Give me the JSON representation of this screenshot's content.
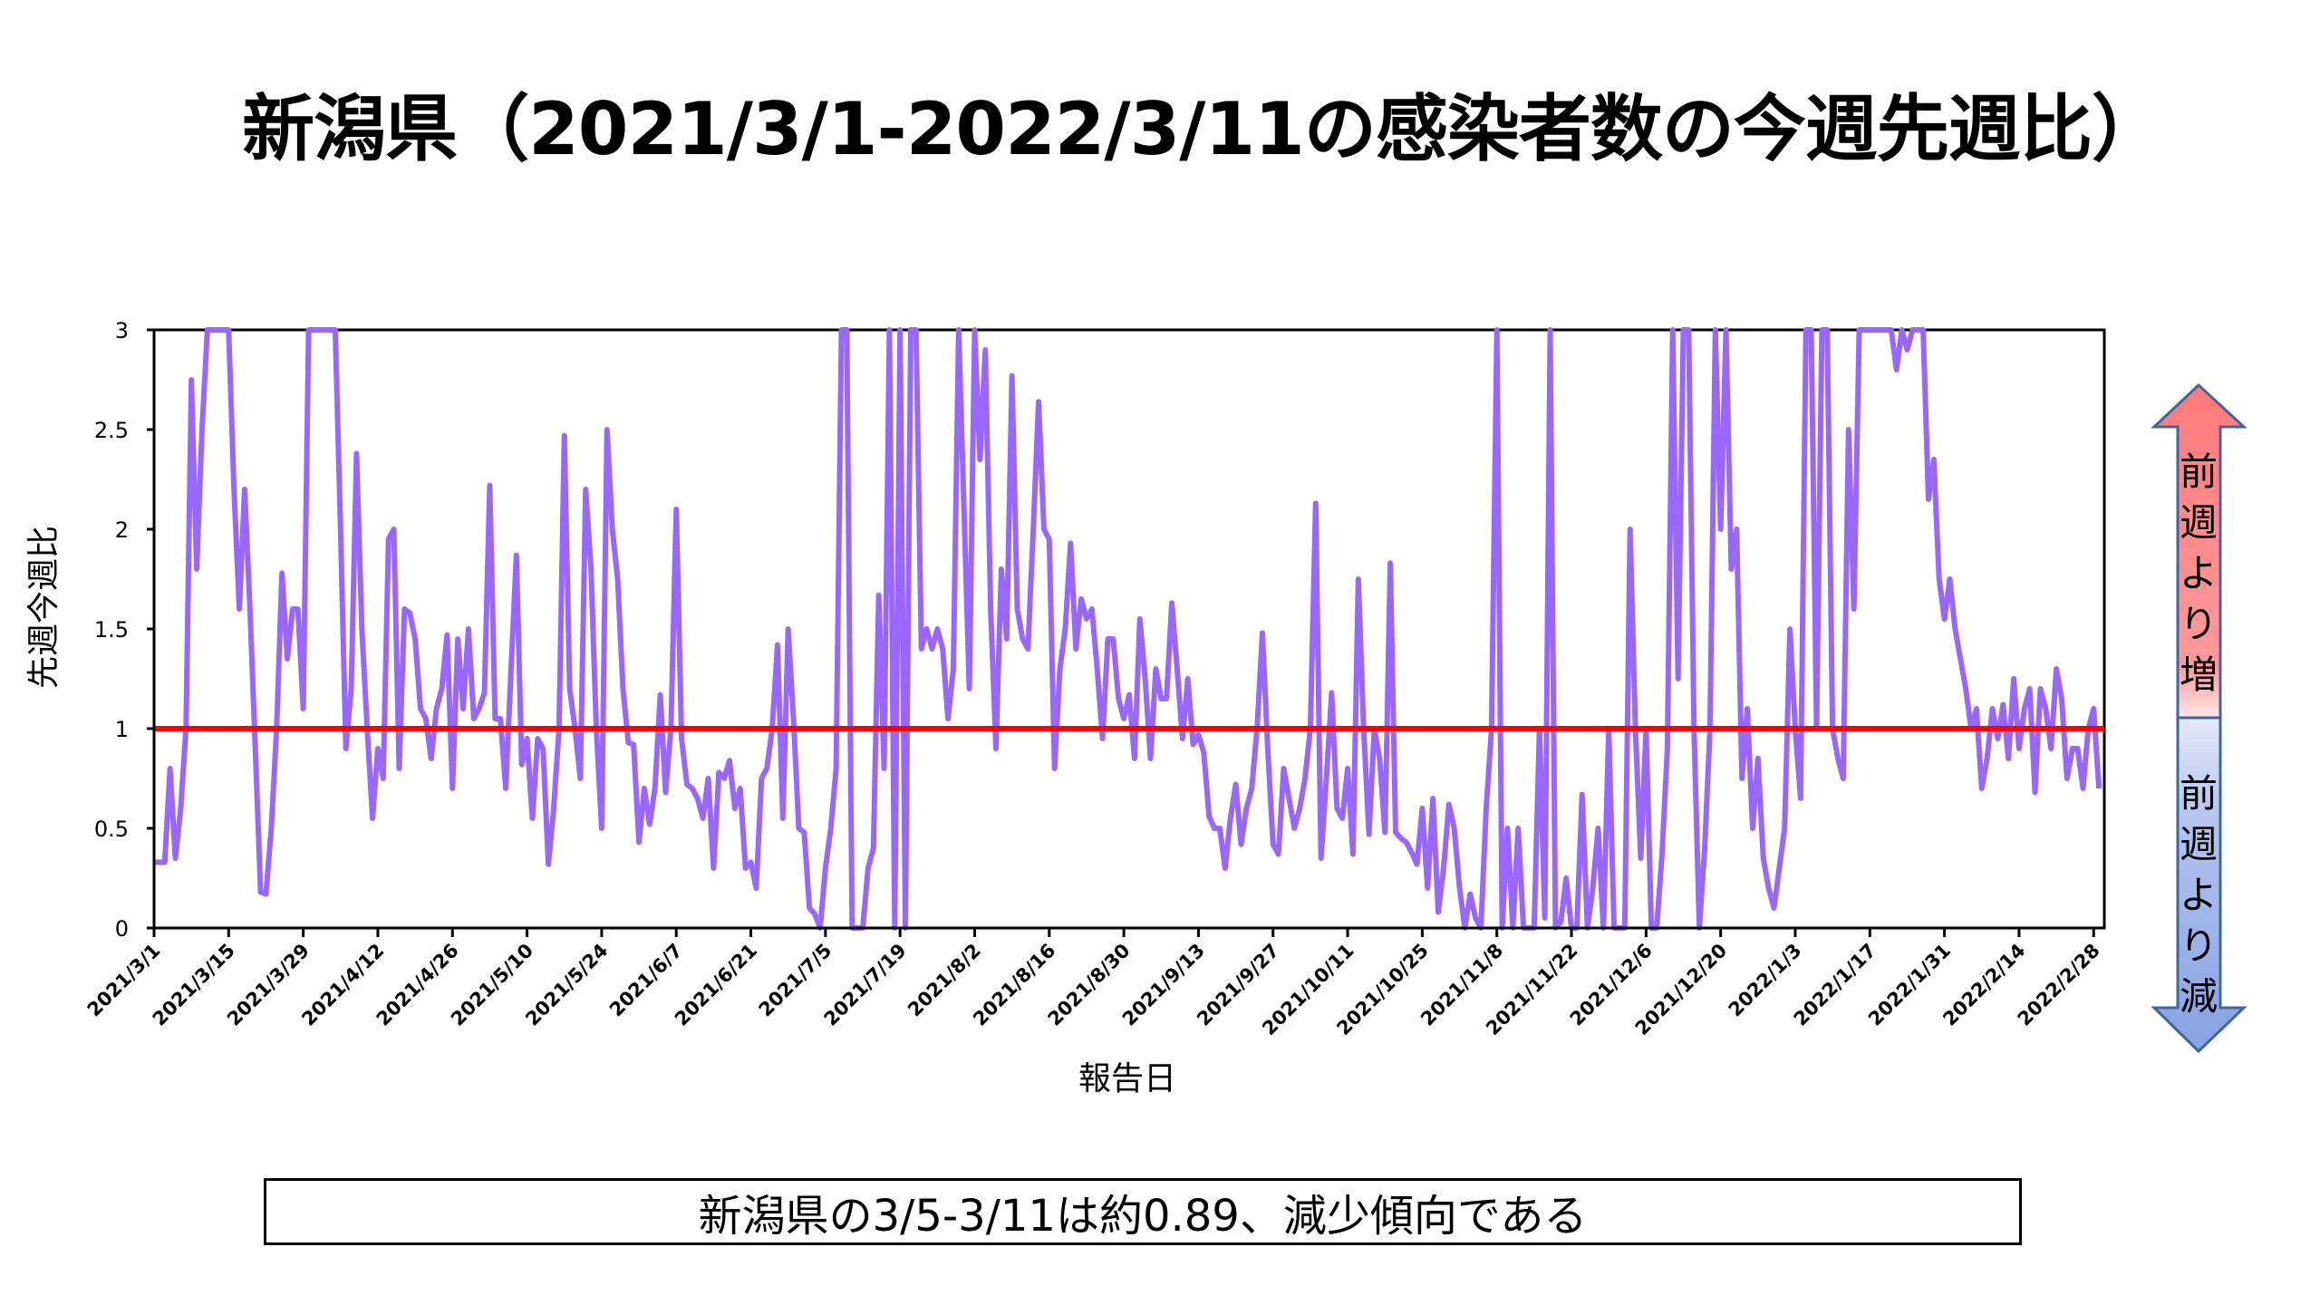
{
  "title": "新潟県（2021/3/1-2022/3/11の感染者数の今週先週比）",
  "summary": "新潟県の3/5-3/11は約0.89、減少傾向である",
  "indicator": {
    "up_label": [
      "前",
      "週",
      "よ",
      "り",
      "増"
    ],
    "down_label": [
      "前",
      "週",
      "よ",
      "り",
      "減"
    ],
    "up_color": "#ff8080",
    "down_color": "#8faae6"
  },
  "chart_data": {
    "type": "line",
    "title": "新潟県（2021/3/1-2022/3/11の感染者数の今週先週比）",
    "xlabel": "報告日",
    "ylabel": "先週今週比",
    "ylim": [
      0,
      3
    ],
    "yticks": [
      "0",
      "0.5",
      "1",
      "1.5",
      "2",
      "2.5",
      "3"
    ],
    "ytick_values": [
      0,
      0.5,
      1,
      1.5,
      2,
      2.5,
      3
    ],
    "x_start": "2021/3/1",
    "x_step_days": 1,
    "xlim_days": [
      0,
      366
    ],
    "xtick_days": [
      0,
      14,
      28,
      42,
      56,
      70,
      84,
      98,
      112,
      126,
      140,
      154,
      168,
      182,
      196,
      210,
      224,
      238,
      252,
      266,
      280,
      294,
      308,
      322,
      336,
      350,
      364
    ],
    "xticks": [
      "2021/3/1",
      "2021/3/15",
      "2021/3/29",
      "2021/4/12",
      "2021/4/26",
      "2021/5/10",
      "2021/5/24",
      "2021/6/7",
      "2021/6/21",
      "2021/7/5",
      "2021/7/19",
      "2021/8/2",
      "2021/8/16",
      "2021/8/30",
      "2021/9/13",
      "2021/9/27",
      "2021/10/11",
      "2021/10/25",
      "2021/11/8",
      "2021/11/22",
      "2021/12/6",
      "2021/12/20",
      "2022/1/3",
      "2022/1/17",
      "2022/1/31",
      "2022/2/14",
      "2022/2/28"
    ],
    "grid": false,
    "reference_line": {
      "y": 1,
      "color": "#ff0000"
    },
    "series": [
      {
        "name": "先週今週比",
        "color": "#9966ff",
        "values": [
          0.33,
          0.33,
          0.33,
          0.8,
          0.35,
          0.6,
          1.0,
          2.75,
          1.8,
          2.5,
          3,
          3,
          3,
          3,
          3,
          2.2,
          1.6,
          2.2,
          1.6,
          0.9,
          0.18,
          0.17,
          0.5,
          1.0,
          1.78,
          1.35,
          1.6,
          1.6,
          1.1,
          3,
          3,
          3,
          3,
          3,
          3,
          2.0,
          0.9,
          1.2,
          2.38,
          1.5,
          1.0,
          0.55,
          0.9,
          0.75,
          1.95,
          2.0,
          0.8,
          1.6,
          1.58,
          1.45,
          1.1,
          1.05,
          0.85,
          1.1,
          1.2,
          1.47,
          0.7,
          1.45,
          1.1,
          1.5,
          1.05,
          1.1,
          1.18,
          2.22,
          1.05,
          1.05,
          0.7,
          1.3,
          1.87,
          0.82,
          0.95,
          0.55,
          0.95,
          0.9,
          0.32,
          0.6,
          1.0,
          2.47,
          1.2,
          1.0,
          0.75,
          2.2,
          1.8,
          1.0,
          0.5,
          2.5,
          2.0,
          1.75,
          1.2,
          0.93,
          0.92,
          0.43,
          0.7,
          0.52,
          0.7,
          1.17,
          0.68,
          1.0,
          2.1,
          0.95,
          0.72,
          0.7,
          0.65,
          0.55,
          0.75,
          0.3,
          0.78,
          0.75,
          0.84,
          0.6,
          0.7,
          0.3,
          0.33,
          0.2,
          0.75,
          0.8,
          1.0,
          1.42,
          0.55,
          1.5,
          1.05,
          0.5,
          0.48,
          0.1,
          0.07,
          0,
          0.3,
          0.5,
          0.8,
          3,
          3,
          0,
          0,
          0,
          0.3,
          0.4,
          1.67,
          0.8,
          3,
          0,
          3,
          0,
          3,
          3,
          1.4,
          1.5,
          1.4,
          1.5,
          1.4,
          1.05,
          1.3,
          3,
          2.1,
          1.2,
          3,
          2.35,
          2.9,
          1.6,
          0.9,
          1.8,
          1.45,
          2.77,
          1.6,
          1.45,
          1.4,
          2.0,
          2.64,
          2.0,
          1.95,
          0.8,
          1.3,
          1.5,
          1.93,
          1.4,
          1.65,
          1.55,
          1.6,
          1.3,
          0.95,
          1.45,
          1.45,
          1.15,
          1.05,
          1.17,
          0.85,
          1.55,
          1.25,
          0.85,
          1.3,
          1.15,
          1.15,
          1.63,
          1.3,
          0.95,
          1.25,
          0.92,
          0.97,
          0.88,
          0.56,
          0.5,
          0.5,
          0.3,
          0.55,
          0.72,
          0.42,
          0.6,
          0.7,
          1.0,
          1.48,
          0.9,
          0.42,
          0.37,
          0.8,
          0.65,
          0.5,
          0.6,
          0.75,
          1.0,
          2.13,
          0.35,
          0.75,
          1.18,
          0.6,
          0.55,
          0.8,
          0.37,
          1.75,
          1.0,
          0.47,
          1.0,
          0.85,
          0.48,
          1.83,
          0.48,
          0.45,
          0.43,
          0.38,
          0.32,
          0.6,
          0.2,
          0.65,
          0.08,
          0.3,
          0.62,
          0.5,
          0.2,
          0,
          0.17,
          0.05,
          0,
          0.6,
          1.0,
          3,
          0,
          0.5,
          0,
          0.5,
          0,
          0,
          0,
          1.0,
          0.05,
          3,
          0,
          0.03,
          0.25,
          0,
          0,
          0.67,
          0,
          0.2,
          0.5,
          0,
          1.0,
          0,
          0,
          0,
          2.0,
          1.0,
          0.35,
          1.0,
          0,
          0,
          0.37,
          0.9,
          3,
          1.25,
          3,
          3,
          1.0,
          0,
          0.4,
          1.0,
          3,
          2.0,
          3,
          1.8,
          2.0,
          0.75,
          1.1,
          0.5,
          0.85,
          0.35,
          0.2,
          0.1,
          0.3,
          0.5,
          1.5,
          1.0,
          0.65,
          3,
          3,
          1.0,
          3,
          3,
          1.0,
          0.85,
          0.75,
          2.5,
          1.6,
          3,
          3,
          3,
          3,
          3,
          3,
          3,
          2.8,
          3,
          2.9,
          3,
          3,
          3,
          2.15,
          2.35,
          1.75,
          1.55,
          1.75,
          1.5,
          1.35,
          1.2,
          1.0,
          1.1,
          0.7,
          0.85,
          1.1,
          0.95,
          1.12,
          0.85,
          1.25,
          0.9,
          1.1,
          1.2,
          0.68,
          1.2,
          1.1,
          0.9,
          1.3,
          1.15,
          0.75,
          0.9,
          0.9,
          0.7,
          1.0,
          1.1,
          0.7
        ]
      }
    ]
  }
}
